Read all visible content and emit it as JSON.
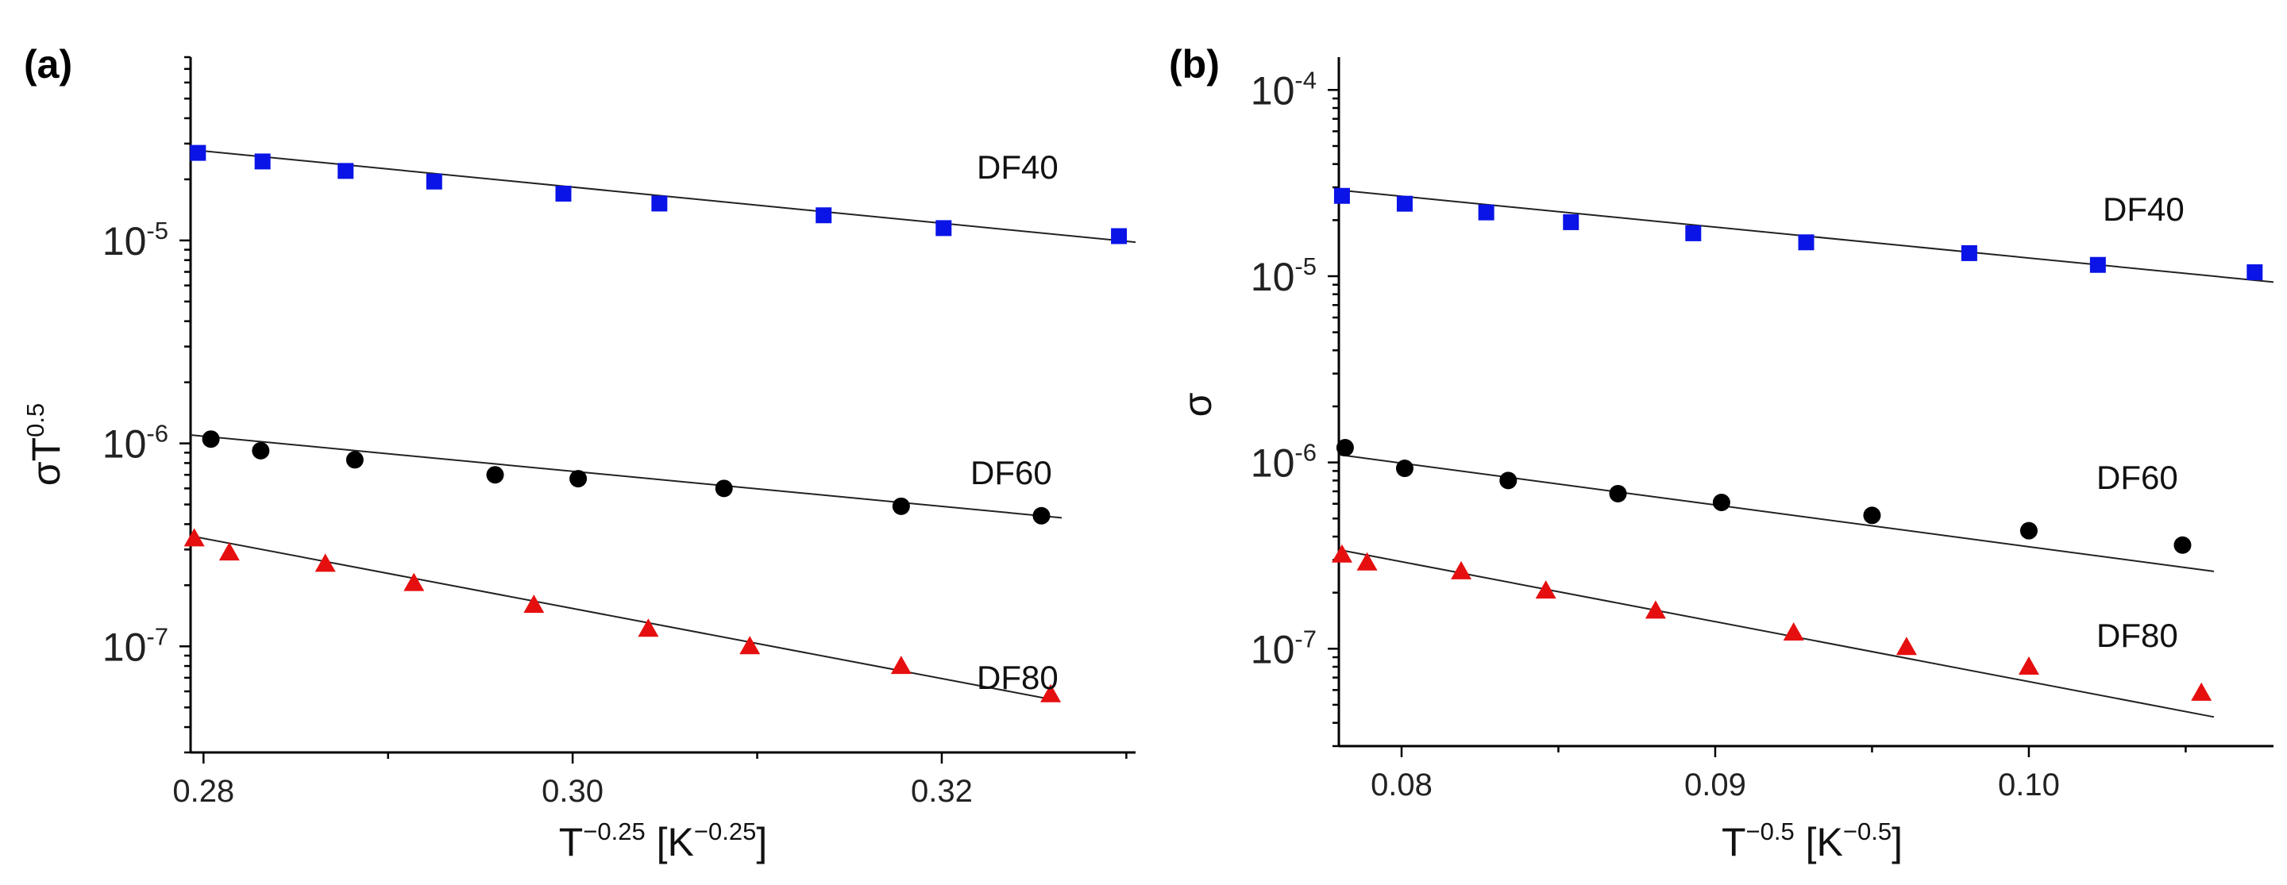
{
  "chart_data": [
    {
      "panel_label": "(a)",
      "type": "scatter",
      "x_scale": "linear",
      "y_scale": "log",
      "xlabel": {
        "base": "T",
        "exp": "−0.25",
        "unit_open": " [K",
        "unit_exp": "−0.25",
        "unit_close": "]"
      },
      "ylabel": {
        "base": "σT",
        "exp": "0.5"
      },
      "xlim": [
        0.2793,
        0.3305
      ],
      "ylim": [
        3e-08,
        8e-05
      ],
      "x_ticks": [
        {
          "value": 0.28,
          "label": "0.28"
        },
        {
          "value": 0.3,
          "label": "0.30"
        },
        {
          "value": 0.32,
          "label": "0.32"
        }
      ],
      "y_decades": [
        {
          "value": 1e-07,
          "base": "10",
          "exp": "-7"
        },
        {
          "value": 1e-06,
          "base": "10",
          "exp": "-6"
        },
        {
          "value": 1e-05,
          "base": "10",
          "exp": "-5"
        }
      ],
      "series": [
        {
          "name": "DF40",
          "marker": "square",
          "color": "#0a14e6",
          "x": [
            0.2797,
            0.2832,
            0.2877,
            0.2925,
            0.2995,
            0.3047,
            0.3136,
            0.3201,
            0.3296
          ],
          "y": [
            2.7e-05,
            2.45e-05,
            2.2e-05,
            1.95e-05,
            1.7e-05,
            1.52e-05,
            1.33e-05,
            1.15e-05,
            1.05e-05
          ],
          "fit": {
            "x": [
              0.2793,
              0.3305
            ],
            "y": [
              2.8e-05,
              9.8e-06
            ]
          }
        },
        {
          "name": "DF60",
          "marker": "circle",
          "color": "#000000",
          "x": [
            0.2804,
            0.2831,
            0.2882,
            0.2958,
            0.3003,
            0.3082,
            0.3178,
            0.3254
          ],
          "y": [
            1.05e-06,
            9.2e-07,
            8.3e-07,
            7e-07,
            6.7e-07,
            6e-07,
            4.9e-07,
            4.4e-07
          ],
          "fit": {
            "x": [
              0.2793,
              0.3265
            ],
            "y": [
              1.1e-06,
              4.3e-07
            ]
          }
        },
        {
          "name": "DF80",
          "marker": "triangle",
          "color": "#e60f0f",
          "x": [
            0.2795,
            0.2814,
            0.2866,
            0.2914,
            0.2979,
            0.3041,
            0.3096,
            0.3178,
            0.3259
          ],
          "y": [
            3.4e-07,
            2.9e-07,
            2.55e-07,
            2.05e-07,
            1.6e-07,
            1.22e-07,
            1e-07,
            8e-08,
            5.8e-08
          ],
          "fit": {
            "x": [
              0.2793,
              0.3263
            ],
            "y": [
              3.5e-07,
              5.4e-08
            ]
          }
        }
      ]
    },
    {
      "panel_label": "(b)",
      "type": "scatter",
      "x_scale": "linear",
      "y_scale": "log",
      "xlabel": {
        "base": "T",
        "exp": "−0.5",
        "unit_open": " [K",
        "unit_exp": "−0.5",
        "unit_close": "]"
      },
      "ylabel": {
        "base": "σ",
        "exp": ""
      },
      "xlim": [
        0.078,
        0.1078
      ],
      "ylim": [
        3e-08,
        0.00015
      ],
      "x_ticks": [
        {
          "value": 0.08,
          "label": "0.08"
        },
        {
          "value": 0.09,
          "label": "0.09"
        },
        {
          "value": 0.1,
          "label": "0.10"
        }
      ],
      "y_decades": [
        {
          "value": 1e-07,
          "base": "10",
          "exp": "-7"
        },
        {
          "value": 1e-06,
          "base": "10",
          "exp": "-6"
        },
        {
          "value": 1e-05,
          "base": "10",
          "exp": "-5"
        },
        {
          "value": 0.0001,
          "base": "10",
          "exp": "-4"
        }
      ],
      "series": [
        {
          "name": "DF40",
          "marker": "square",
          "color": "#0a14e6",
          "x": [
            0.0781,
            0.0801,
            0.0827,
            0.0854,
            0.0893,
            0.0929,
            0.0981,
            0.1022,
            0.1072
          ],
          "y": [
            2.7e-05,
            2.45e-05,
            2.2e-05,
            1.95e-05,
            1.7e-05,
            1.52e-05,
            1.33e-05,
            1.15e-05,
            1.05e-05
          ],
          "fit": {
            "x": [
              0.078,
              0.1078
            ],
            "y": [
              2.9e-05,
              9.3e-06
            ]
          }
        },
        {
          "name": "DF60",
          "marker": "circle",
          "color": "#000000",
          "x": [
            0.0782,
            0.0801,
            0.0834,
            0.0869,
            0.0902,
            0.095,
            0.1,
            0.1049
          ],
          "y": [
            1.2e-06,
            9.3e-07,
            8e-07,
            6.8e-07,
            6.1e-07,
            5.2e-07,
            4.3e-07,
            3.6e-07
          ],
          "fit": {
            "x": [
              0.078,
              0.1059
            ],
            "y": [
              1.1e-06,
              2.6e-07
            ]
          }
        },
        {
          "name": "DF80",
          "marker": "triangle",
          "color": "#e60f0f",
          "x": [
            0.0781,
            0.0789,
            0.0819,
            0.0846,
            0.0881,
            0.0925,
            0.0961,
            0.1,
            0.1055
          ],
          "y": [
            3.2e-07,
            2.9e-07,
            2.6e-07,
            2.05e-07,
            1.6e-07,
            1.22e-07,
            1.02e-07,
            8e-08,
            5.8e-08
          ],
          "fit": {
            "x": [
              0.078,
              0.1059
            ],
            "y": [
              3.4e-07,
              4.3e-08
            ]
          }
        }
      ]
    }
  ]
}
